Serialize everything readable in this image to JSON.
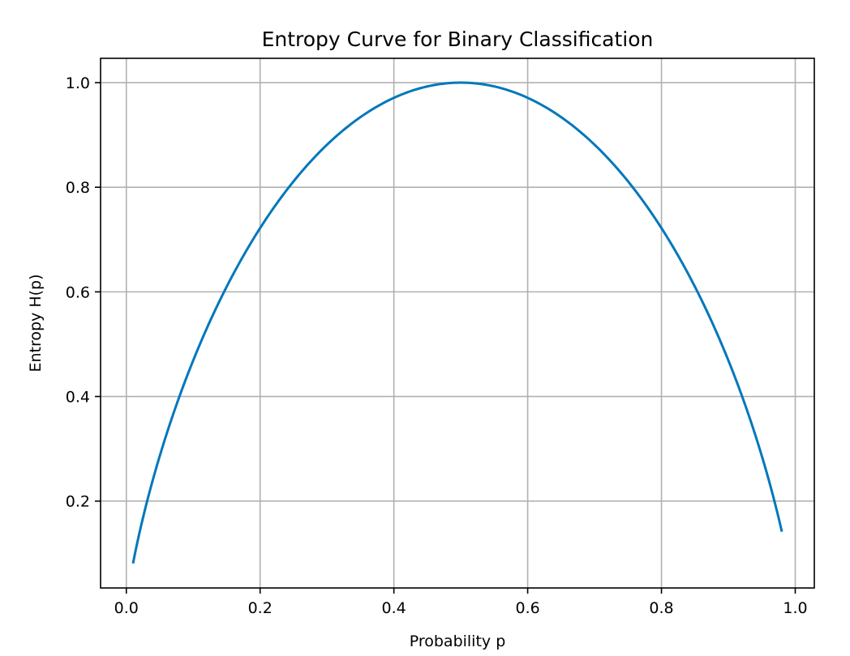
{
  "chart_data": {
    "type": "line",
    "title": "Entropy Curve for Binary Classification",
    "xlabel": "Probability p",
    "ylabel": "Entropy H(p)",
    "xlim": [
      -0.0385,
      1.0285
    ],
    "ylim": [
      0.0339,
      1.0465
    ],
    "grid": true,
    "xticks": [
      0.0,
      0.2,
      0.4,
      0.6,
      0.8,
      1.0
    ],
    "xtick_labels": [
      "0.0",
      "0.2",
      "0.4",
      "0.6",
      "0.8",
      "1.0"
    ],
    "yticks": [
      0.2,
      0.4,
      0.6,
      0.8,
      1.0
    ],
    "ytick_labels": [
      "0.2",
      "0.4",
      "0.6",
      "0.8",
      "1.0"
    ],
    "series": [
      {
        "name": "H(p)",
        "color": "#0077bb",
        "x_start": 0.01,
        "x_end": 0.98,
        "formula": "-p*log2(p) - (1-p)*log2(1-p)",
        "sample_points": [
          {
            "p": 0.01,
            "h": 0.081
          },
          {
            "p": 0.1,
            "h": 0.469
          },
          {
            "p": 0.2,
            "h": 0.722
          },
          {
            "p": 0.3,
            "h": 0.881
          },
          {
            "p": 0.4,
            "h": 0.971
          },
          {
            "p": 0.5,
            "h": 1.0
          },
          {
            "p": 0.6,
            "h": 0.971
          },
          {
            "p": 0.7,
            "h": 0.881
          },
          {
            "p": 0.8,
            "h": 0.722
          },
          {
            "p": 0.9,
            "h": 0.469
          },
          {
            "p": 0.98,
            "h": 0.141
          }
        ]
      }
    ]
  }
}
